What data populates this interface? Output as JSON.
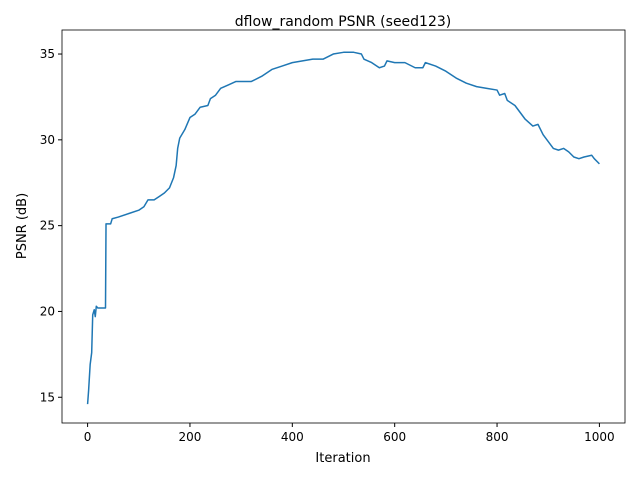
{
  "chart_data": {
    "type": "line",
    "title": "dflow_random PSNR (seed123)",
    "x_label": "Iteration",
    "y_label": "PSNR (dB)",
    "color": "#1f77b4",
    "x": [
      0,
      2,
      5,
      8,
      10,
      13,
      15,
      17,
      20,
      35,
      36,
      45,
      48,
      60,
      80,
      100,
      110,
      118,
      130,
      140,
      150,
      160,
      168,
      173,
      176,
      180,
      190,
      200,
      210,
      220,
      235,
      240,
      250,
      260,
      275,
      290,
      320,
      340,
      360,
      380,
      400,
      420,
      440,
      460,
      480,
      500,
      520,
      535,
      540,
      555,
      570,
      580,
      585,
      600,
      620,
      640,
      655,
      660,
      680,
      700,
      720,
      740,
      760,
      780,
      800,
      805,
      815,
      820,
      835,
      845,
      855,
      870,
      880,
      890,
      900,
      910,
      920,
      930,
      940,
      950,
      960,
      970,
      985,
      990,
      1000
    ],
    "values": [
      14.6,
      15.4,
      16.9,
      17.6,
      19.8,
      20.1,
      19.7,
      20.3,
      20.2,
      20.2,
      25.1,
      25.1,
      25.4,
      25.5,
      25.7,
      25.9,
      26.1,
      26.5,
      26.5,
      26.7,
      26.9,
      27.2,
      27.8,
      28.5,
      29.5,
      30.1,
      30.6,
      31.3,
      31.5,
      31.9,
      32.0,
      32.4,
      32.6,
      33.0,
      33.2,
      33.4,
      33.4,
      33.7,
      34.1,
      34.3,
      34.5,
      34.6,
      34.7,
      34.7,
      35.0,
      35.1,
      35.1,
      35.0,
      34.7,
      34.5,
      34.2,
      34.3,
      34.6,
      34.5,
      34.5,
      34.2,
      34.2,
      34.5,
      34.3,
      34.0,
      33.6,
      33.3,
      33.1,
      33.0,
      32.9,
      32.6,
      32.7,
      32.3,
      32.0,
      31.6,
      31.2,
      30.8,
      30.9,
      30.3,
      29.9,
      29.5,
      29.4,
      29.5,
      29.3,
      29.0,
      28.9,
      29.0,
      29.1,
      28.9,
      28.6
    ],
    "xlim": [
      -50,
      1050
    ],
    "xticks": [
      0,
      200,
      400,
      600,
      800,
      1000
    ],
    "ylim": [
      13.5,
      36.4
    ],
    "yticks": [
      15,
      20,
      25,
      30,
      35
    ]
  }
}
